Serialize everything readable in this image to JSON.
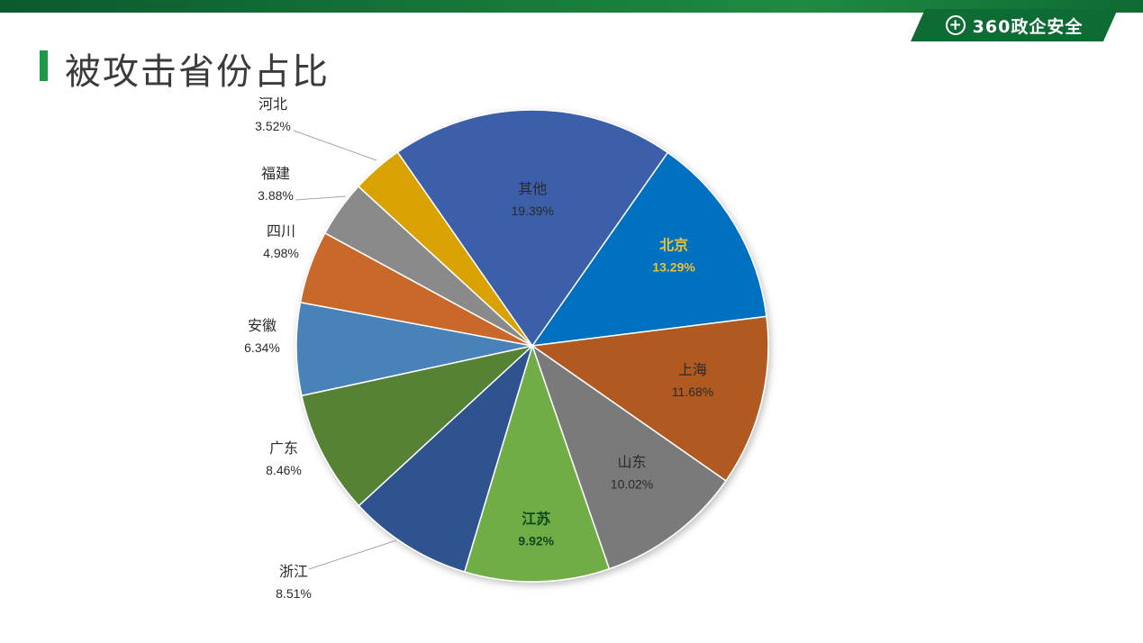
{
  "header": {
    "brand_mark": "+",
    "brand": "360政企安全"
  },
  "page": {
    "title": "被攻击省份占比"
  },
  "colors": {
    "brand_green": "#0f6b34",
    "title_accent": "#1d9a47"
  },
  "chart_data": {
    "type": "pie",
    "title": "",
    "start_angle_deg": 35,
    "direction": "clockwise",
    "slices": [
      {
        "label": "北京",
        "value": 13.29,
        "display": "13.29%",
        "color": "#0070c0",
        "label_color": "#e8c13a",
        "label_bold": true
      },
      {
        "label": "上海",
        "value": 11.68,
        "display": "11.68%",
        "color": "#b05a20",
        "label_color": "#2a2a2a",
        "label_bold": false
      },
      {
        "label": "山东",
        "value": 10.02,
        "display": "10.02%",
        "color": "#7a7a7a",
        "label_color": "#2a2a2a",
        "label_bold": false
      },
      {
        "label": "江苏",
        "value": 9.92,
        "display": "9.92%",
        "color": "#70ad47",
        "label_color": "#0d4a1e",
        "label_bold": true
      },
      {
        "label": "浙江",
        "value": 8.51,
        "display": "8.51%",
        "color": "#2f528f",
        "label_color": "#2a2a2a",
        "label_bold": false
      },
      {
        "label": "广东",
        "value": 8.46,
        "display": "8.46%",
        "color": "#548235",
        "label_color": "#2a2a2a",
        "label_bold": false
      },
      {
        "label": "安徽",
        "value": 6.34,
        "display": "6.34%",
        "color": "#4a82b8",
        "label_color": "#2a2a2a",
        "label_bold": false
      },
      {
        "label": "四川",
        "value": 4.98,
        "display": "4.98%",
        "color": "#c8682a",
        "label_color": "#2a2a2a",
        "label_bold": false
      },
      {
        "label": "福建",
        "value": 3.88,
        "display": "3.88%",
        "color": "#8a8a8a",
        "label_color": "#2a2a2a",
        "label_bold": false
      },
      {
        "label": "河北",
        "value": 3.52,
        "display": "3.52%",
        "color": "#d9a200",
        "label_color": "#2a2a2a",
        "label_bold": false
      },
      {
        "label": "其他",
        "value": 19.39,
        "display": "19.39%",
        "color": "#3a5fa8",
        "label_color": "#2a2a2a",
        "label_bold": false
      }
    ]
  }
}
